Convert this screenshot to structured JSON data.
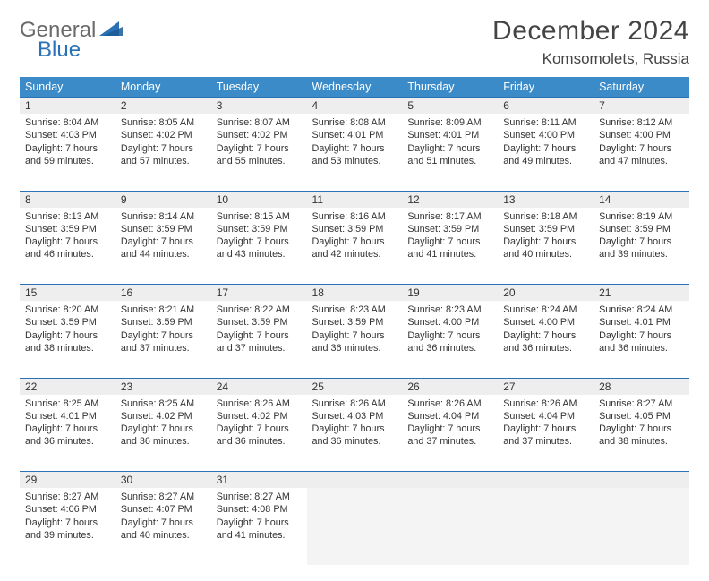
{
  "logo": {
    "general": "General",
    "blue": "Blue"
  },
  "title": "December 2024",
  "location": "Komsomolets, Russia",
  "colors": {
    "header_bg": "#3b8bc8",
    "accent": "#2a72b5",
    "daynum_bg": "#eeeeee",
    "text": "#333333",
    "logo_gray": "#6a6a6a"
  },
  "weekdays": [
    "Sunday",
    "Monday",
    "Tuesday",
    "Wednesday",
    "Thursday",
    "Friday",
    "Saturday"
  ],
  "weeks": [
    [
      {
        "n": "1",
        "sr": "8:04 AM",
        "ss": "4:03 PM",
        "dh": "7",
        "dm": "59"
      },
      {
        "n": "2",
        "sr": "8:05 AM",
        "ss": "4:02 PM",
        "dh": "7",
        "dm": "57"
      },
      {
        "n": "3",
        "sr": "8:07 AM",
        "ss": "4:02 PM",
        "dh": "7",
        "dm": "55"
      },
      {
        "n": "4",
        "sr": "8:08 AM",
        "ss": "4:01 PM",
        "dh": "7",
        "dm": "53"
      },
      {
        "n": "5",
        "sr": "8:09 AM",
        "ss": "4:01 PM",
        "dh": "7",
        "dm": "51"
      },
      {
        "n": "6",
        "sr": "8:11 AM",
        "ss": "4:00 PM",
        "dh": "7",
        "dm": "49"
      },
      {
        "n": "7",
        "sr": "8:12 AM",
        "ss": "4:00 PM",
        "dh": "7",
        "dm": "47"
      }
    ],
    [
      {
        "n": "8",
        "sr": "8:13 AM",
        "ss": "3:59 PM",
        "dh": "7",
        "dm": "46"
      },
      {
        "n": "9",
        "sr": "8:14 AM",
        "ss": "3:59 PM",
        "dh": "7",
        "dm": "44"
      },
      {
        "n": "10",
        "sr": "8:15 AM",
        "ss": "3:59 PM",
        "dh": "7",
        "dm": "43"
      },
      {
        "n": "11",
        "sr": "8:16 AM",
        "ss": "3:59 PM",
        "dh": "7",
        "dm": "42"
      },
      {
        "n": "12",
        "sr": "8:17 AM",
        "ss": "3:59 PM",
        "dh": "7",
        "dm": "41"
      },
      {
        "n": "13",
        "sr": "8:18 AM",
        "ss": "3:59 PM",
        "dh": "7",
        "dm": "40"
      },
      {
        "n": "14",
        "sr": "8:19 AM",
        "ss": "3:59 PM",
        "dh": "7",
        "dm": "39"
      }
    ],
    [
      {
        "n": "15",
        "sr": "8:20 AM",
        "ss": "3:59 PM",
        "dh": "7",
        "dm": "38"
      },
      {
        "n": "16",
        "sr": "8:21 AM",
        "ss": "3:59 PM",
        "dh": "7",
        "dm": "37"
      },
      {
        "n": "17",
        "sr": "8:22 AM",
        "ss": "3:59 PM",
        "dh": "7",
        "dm": "37"
      },
      {
        "n": "18",
        "sr": "8:23 AM",
        "ss": "3:59 PM",
        "dh": "7",
        "dm": "36"
      },
      {
        "n": "19",
        "sr": "8:23 AM",
        "ss": "4:00 PM",
        "dh": "7",
        "dm": "36"
      },
      {
        "n": "20",
        "sr": "8:24 AM",
        "ss": "4:00 PM",
        "dh": "7",
        "dm": "36"
      },
      {
        "n": "21",
        "sr": "8:24 AM",
        "ss": "4:01 PM",
        "dh": "7",
        "dm": "36"
      }
    ],
    [
      {
        "n": "22",
        "sr": "8:25 AM",
        "ss": "4:01 PM",
        "dh": "7",
        "dm": "36"
      },
      {
        "n": "23",
        "sr": "8:25 AM",
        "ss": "4:02 PM",
        "dh": "7",
        "dm": "36"
      },
      {
        "n": "24",
        "sr": "8:26 AM",
        "ss": "4:02 PM",
        "dh": "7",
        "dm": "36"
      },
      {
        "n": "25",
        "sr": "8:26 AM",
        "ss": "4:03 PM",
        "dh": "7",
        "dm": "36"
      },
      {
        "n": "26",
        "sr": "8:26 AM",
        "ss": "4:04 PM",
        "dh": "7",
        "dm": "37"
      },
      {
        "n": "27",
        "sr": "8:26 AM",
        "ss": "4:04 PM",
        "dh": "7",
        "dm": "37"
      },
      {
        "n": "28",
        "sr": "8:27 AM",
        "ss": "4:05 PM",
        "dh": "7",
        "dm": "38"
      }
    ],
    [
      {
        "n": "29",
        "sr": "8:27 AM",
        "ss": "4:06 PM",
        "dh": "7",
        "dm": "39"
      },
      {
        "n": "30",
        "sr": "8:27 AM",
        "ss": "4:07 PM",
        "dh": "7",
        "dm": "40"
      },
      {
        "n": "31",
        "sr": "8:27 AM",
        "ss": "4:08 PM",
        "dh": "7",
        "dm": "41"
      },
      null,
      null,
      null,
      null
    ]
  ],
  "labels": {
    "sunrise": "Sunrise:",
    "sunset": "Sunset:",
    "daylight": "Daylight:",
    "hours": "hours",
    "and": "and",
    "minutes": "minutes."
  }
}
